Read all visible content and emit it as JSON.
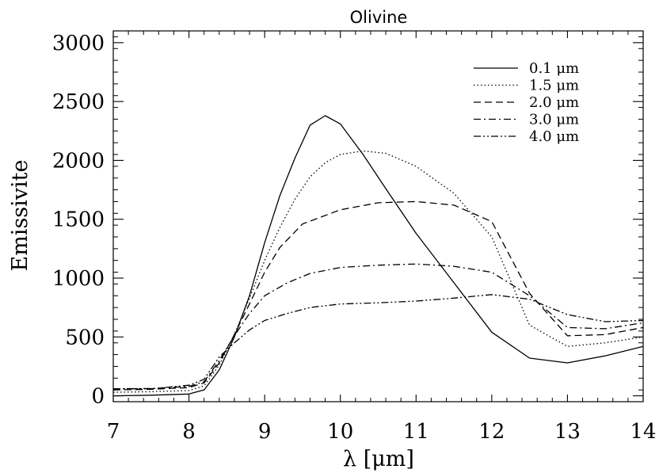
{
  "chart_data": {
    "type": "line",
    "title": "Olivine",
    "xlabel": "λ [μm]",
    "ylabel": "Emissivite",
    "xlim": [
      7,
      14
    ],
    "ylim": [
      -50,
      3100
    ],
    "xticks": [
      7,
      8,
      9,
      10,
      11,
      12,
      13,
      14
    ],
    "yticks": [
      0,
      500,
      1000,
      1500,
      2000,
      2500,
      3000
    ],
    "xtick_labels": [
      "7",
      "8",
      "9",
      "10",
      "11",
      "12",
      "13",
      "14"
    ],
    "ytick_labels": [
      "0",
      "500",
      "1000",
      "1500",
      "2000",
      "2500",
      "3000"
    ],
    "grid": false,
    "legend_position": "top-right",
    "series": [
      {
        "name": "0.1 μm",
        "style": "solid",
        "x": [
          7.0,
          7.5,
          8.0,
          8.2,
          8.4,
          8.6,
          8.8,
          9.0,
          9.2,
          9.4,
          9.6,
          9.8,
          10.0,
          10.3,
          10.6,
          11.0,
          11.5,
          12.0,
          12.5,
          13.0,
          13.5,
          14.0
        ],
        "y": [
          0,
          5,
          15,
          50,
          220,
          500,
          850,
          1300,
          1700,
          2020,
          2300,
          2380,
          2310,
          2050,
          1760,
          1380,
          960,
          540,
          320,
          280,
          340,
          420
        ]
      },
      {
        "name": "1.5 μm",
        "style": "dotted",
        "x": [
          7.0,
          7.5,
          8.0,
          8.2,
          8.4,
          8.6,
          8.8,
          9.0,
          9.2,
          9.4,
          9.6,
          9.8,
          10.0,
          10.3,
          10.6,
          11.0,
          11.5,
          12.0,
          12.5,
          13.0,
          13.5,
          14.0
        ],
        "y": [
          30,
          35,
          45,
          85,
          260,
          520,
          830,
          1150,
          1430,
          1670,
          1860,
          1980,
          2050,
          2080,
          2060,
          1950,
          1720,
          1350,
          600,
          420,
          450,
          500
        ]
      },
      {
        "name": "2.0 μm",
        "style": "dashed",
        "x": [
          7.0,
          7.5,
          8.0,
          8.2,
          8.4,
          8.6,
          8.8,
          9.0,
          9.2,
          9.5,
          10.0,
          10.5,
          11.0,
          11.5,
          12.0,
          12.5,
          13.0,
          13.5,
          14.0
        ],
        "y": [
          50,
          55,
          70,
          110,
          280,
          520,
          780,
          1050,
          1260,
          1460,
          1580,
          1640,
          1650,
          1620,
          1480,
          870,
          510,
          520,
          580
        ]
      },
      {
        "name": "3.0 μm",
        "style": "dashdot",
        "x": [
          7.0,
          7.5,
          8.0,
          8.2,
          8.4,
          8.6,
          8.8,
          9.0,
          9.3,
          9.6,
          10.0,
          10.5,
          11.0,
          11.5,
          12.0,
          12.5,
          13.0,
          13.5,
          14.0
        ],
        "y": [
          60,
          62,
          80,
          120,
          300,
          510,
          700,
          850,
          960,
          1040,
          1090,
          1110,
          1120,
          1100,
          1050,
          850,
          580,
          570,
          620
        ]
      },
      {
        "name": "4.0 μm",
        "style": "dashdotdot",
        "x": [
          7.0,
          7.5,
          8.0,
          8.2,
          8.4,
          8.6,
          8.8,
          9.0,
          9.3,
          9.6,
          10.0,
          10.5,
          11.0,
          11.5,
          12.0,
          12.5,
          13.0,
          13.5,
          14.0
        ],
        "y": [
          60,
          60,
          90,
          140,
          330,
          450,
          560,
          640,
          700,
          750,
          780,
          790,
          805,
          830,
          860,
          820,
          690,
          630,
          640
        ]
      }
    ]
  }
}
